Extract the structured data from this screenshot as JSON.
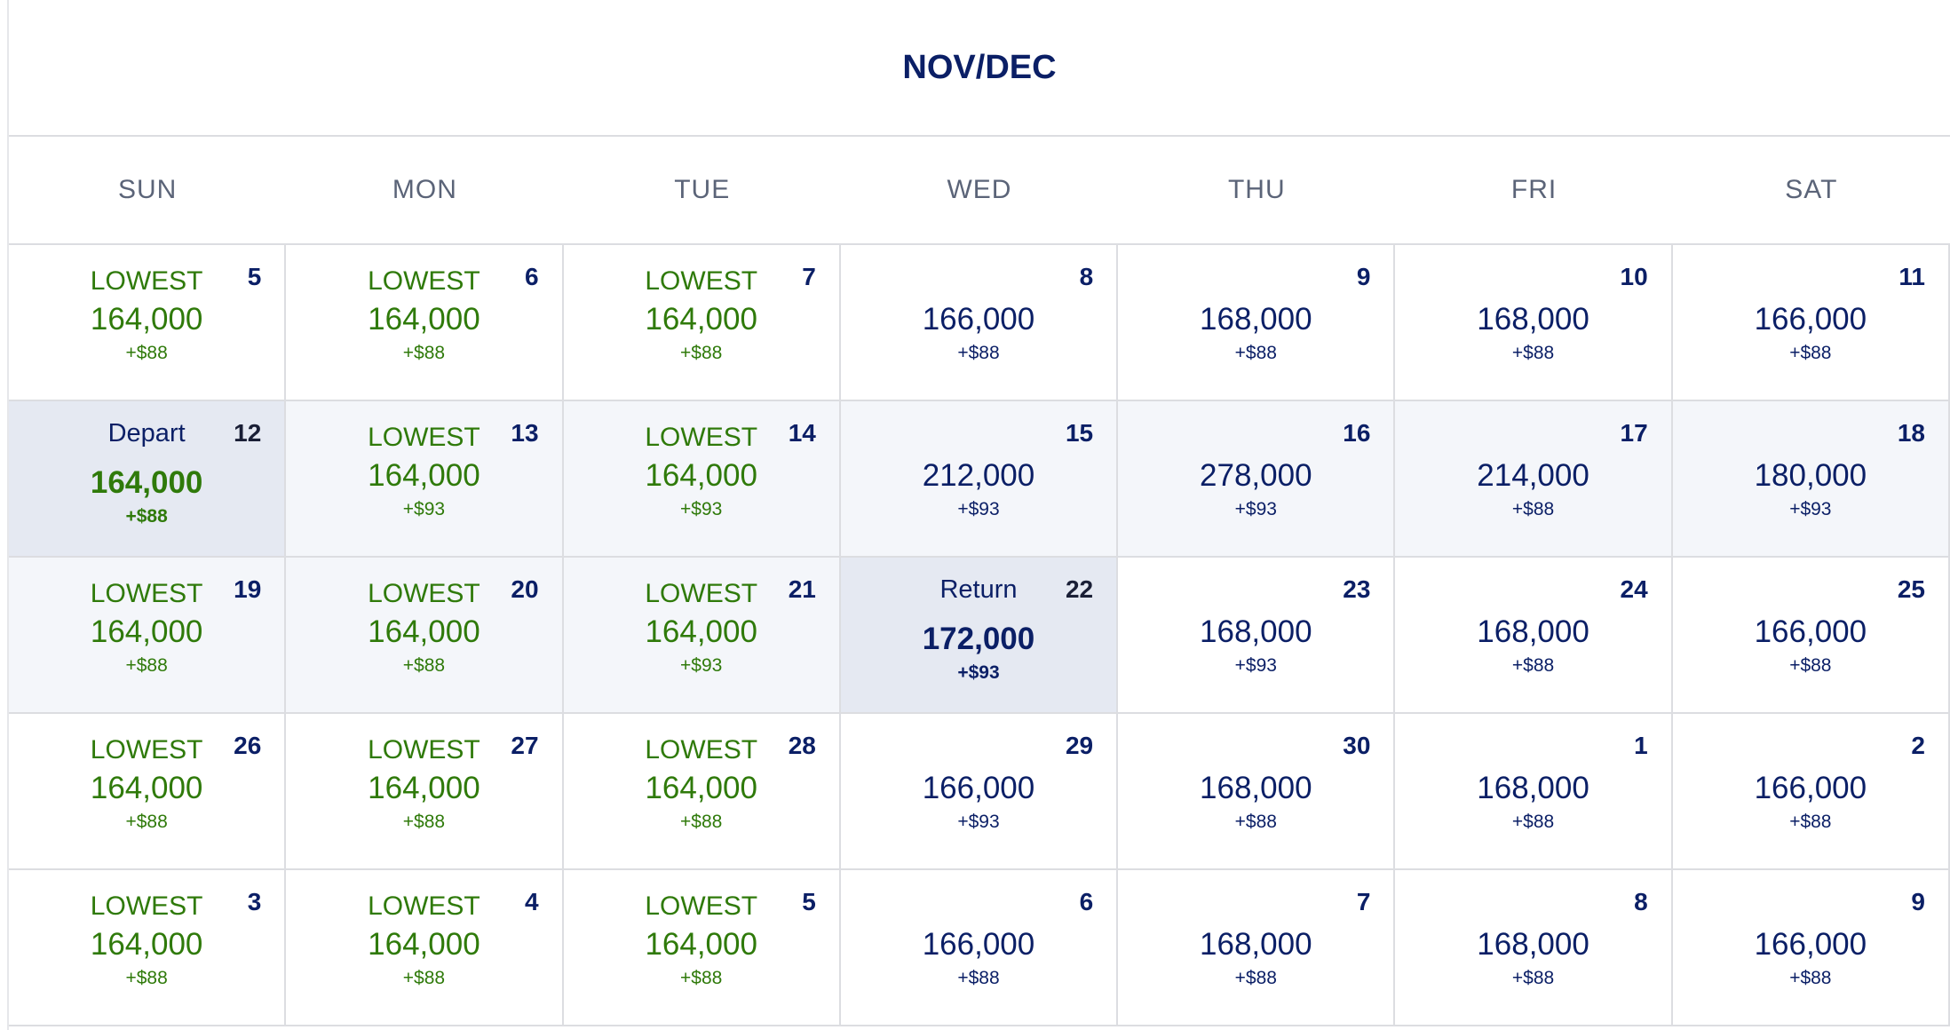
{
  "title": "NOV/DEC",
  "weekdays": [
    "SUN",
    "MON",
    "TUE",
    "WED",
    "THU",
    "FRI",
    "SAT"
  ],
  "lowest_label": "LOWEST",
  "colors": {
    "green": "#2f7a0a",
    "navy": "#0b1f66",
    "selected": "#e5e9f2",
    "shade": "#f4f6fa"
  },
  "weeks": [
    [
      {
        "day": "5",
        "price": "164,000",
        "fee": "+$88",
        "lowest": true
      },
      {
        "day": "6",
        "price": "164,000",
        "fee": "+$88",
        "lowest": true
      },
      {
        "day": "7",
        "price": "164,000",
        "fee": "+$88",
        "lowest": true
      },
      {
        "day": "8",
        "price": "166,000",
        "fee": "+$88"
      },
      {
        "day": "9",
        "price": "168,000",
        "fee": "+$88"
      },
      {
        "day": "10",
        "price": "168,000",
        "fee": "+$88"
      },
      {
        "day": "11",
        "price": "166,000",
        "fee": "+$88"
      }
    ],
    [
      {
        "day": "12",
        "price": "164,000",
        "fee": "+$88",
        "selected": "Depart",
        "lowprice": true
      },
      {
        "day": "13",
        "price": "164,000",
        "fee": "+$93",
        "lowest": true,
        "shade": true
      },
      {
        "day": "14",
        "price": "164,000",
        "fee": "+$93",
        "lowest": true,
        "shade": true
      },
      {
        "day": "15",
        "price": "212,000",
        "fee": "+$93",
        "shade": true
      },
      {
        "day": "16",
        "price": "278,000",
        "fee": "+$93",
        "shade": true
      },
      {
        "day": "17",
        "price": "214,000",
        "fee": "+$88",
        "shade": true
      },
      {
        "day": "18",
        "price": "180,000",
        "fee": "+$93",
        "shade": true
      }
    ],
    [
      {
        "day": "19",
        "price": "164,000",
        "fee": "+$88",
        "lowest": true,
        "shade": true
      },
      {
        "day": "20",
        "price": "164,000",
        "fee": "+$88",
        "lowest": true,
        "shade": true
      },
      {
        "day": "21",
        "price": "164,000",
        "fee": "+$93",
        "lowest": true,
        "shade": true
      },
      {
        "day": "22",
        "price": "172,000",
        "fee": "+$93",
        "selected": "Return"
      },
      {
        "day": "23",
        "price": "168,000",
        "fee": "+$93"
      },
      {
        "day": "24",
        "price": "168,000",
        "fee": "+$88"
      },
      {
        "day": "25",
        "price": "166,000",
        "fee": "+$88"
      }
    ],
    [
      {
        "day": "26",
        "price": "164,000",
        "fee": "+$88",
        "lowest": true
      },
      {
        "day": "27",
        "price": "164,000",
        "fee": "+$88",
        "lowest": true
      },
      {
        "day": "28",
        "price": "164,000",
        "fee": "+$88",
        "lowest": true
      },
      {
        "day": "29",
        "price": "166,000",
        "fee": "+$93"
      },
      {
        "day": "30",
        "price": "168,000",
        "fee": "+$88"
      },
      {
        "day": "1",
        "price": "168,000",
        "fee": "+$88"
      },
      {
        "day": "2",
        "price": "166,000",
        "fee": "+$88"
      }
    ],
    [
      {
        "day": "3",
        "price": "164,000",
        "fee": "+$88",
        "lowest": true
      },
      {
        "day": "4",
        "price": "164,000",
        "fee": "+$88",
        "lowest": true
      },
      {
        "day": "5",
        "price": "164,000",
        "fee": "+$88",
        "lowest": true
      },
      {
        "day": "6",
        "price": "166,000",
        "fee": "+$88"
      },
      {
        "day": "7",
        "price": "168,000",
        "fee": "+$88"
      },
      {
        "day": "8",
        "price": "168,000",
        "fee": "+$88"
      },
      {
        "day": "9",
        "price": "166,000",
        "fee": "+$88"
      }
    ]
  ]
}
